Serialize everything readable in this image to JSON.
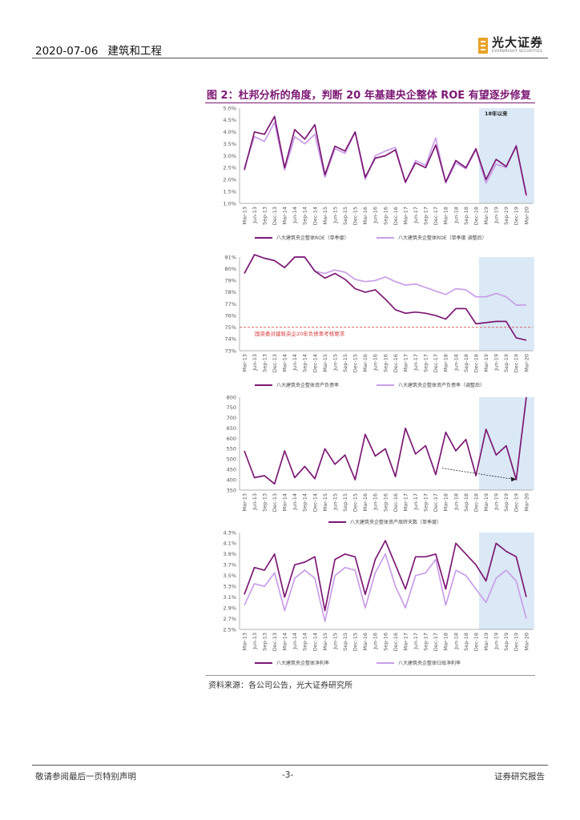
{
  "header": {
    "date": "2020-07-06",
    "section": "建筑和工程"
  },
  "logo": {
    "name": "光大证券",
    "sub": "EVERBRIGHT SECURITIES"
  },
  "figure": {
    "title": "图 2：杜邦分析的角度，判断 20 年基建央企整体 ROE 有望逐步修复"
  },
  "source": "资料来源：各公司公告，光大证券研究所",
  "footer": {
    "left": "敬请参阅最后一页特别声明",
    "center": "-3-",
    "right": "证券研究报告"
  },
  "colors": {
    "dark": "#7c1874",
    "light": "#c99ee8",
    "highlight": "#dbe9f6",
    "refline": "#d63a3a"
  },
  "chart_data": [
    {
      "type": "line",
      "x": [
        "Mar-13",
        "Jun-13",
        "Sep-13",
        "Dec-13",
        "Mar-14",
        "Jun-14",
        "Sep-14",
        "Dec-14",
        "Mar-15",
        "Jun-15",
        "Sep-15",
        "Dec-15",
        "Mar-16",
        "Jun-16",
        "Sep-16",
        "Dec-16",
        "Mar-17",
        "Jun-17",
        "Sep-17",
        "Dec-17",
        "Mar-18",
        "Jun-18",
        "Sep-18",
        "Dec-18",
        "Mar-19",
        "Jun-19",
        "Sep-19",
        "Dec-19",
        "Mar-20"
      ],
      "series": [
        {
          "name": "八大建筑央企整体ROE（单季度）",
          "values": [
            2.4,
            4.0,
            3.9,
            4.65,
            2.5,
            4.1,
            3.7,
            4.3,
            2.2,
            3.4,
            3.2,
            4.0,
            2.1,
            2.9,
            3.0,
            3.25,
            1.9,
            2.7,
            2.5,
            3.45,
            1.9,
            2.8,
            2.5,
            3.3,
            2.0,
            2.85,
            2.55,
            3.4,
            1.35
          ]
        },
        {
          "name": "八大建筑央企整体ROE（单季度 调整后）",
          "values": [
            2.5,
            3.8,
            3.6,
            4.4,
            2.4,
            3.8,
            3.5,
            3.9,
            2.1,
            3.3,
            3.1,
            4.0,
            2.0,
            3.0,
            3.2,
            3.35,
            1.85,
            2.8,
            2.6,
            3.75,
            1.85,
            2.7,
            2.45,
            3.25,
            1.85,
            2.65,
            2.5,
            3.45,
            1.3
          ]
        }
      ],
      "yticks": [
        "1.0%",
        "1.5%",
        "2.0%",
        "2.5%",
        "3.0%",
        "3.5%",
        "4.0%",
        "4.5%",
        "5.0%"
      ],
      "ylim": [
        1.0,
        5.0
      ],
      "annotation": "18年以来"
    },
    {
      "type": "line",
      "x": [
        "Mar-13",
        "Jun-13",
        "Sep-13",
        "Dec-13",
        "Mar-14",
        "Jun-14",
        "Sep-14",
        "Dec-14",
        "Mar-15",
        "Jun-15",
        "Sep-15",
        "Dec-15",
        "Mar-16",
        "Jun-16",
        "Sep-16",
        "Dec-16",
        "Mar-17",
        "Jun-17",
        "Sep-17",
        "Dec-17",
        "Mar-18",
        "Jun-18",
        "Sep-18",
        "Dec-18",
        "Mar-19",
        "Jun-19",
        "Sep-19",
        "Dec-19",
        "Mar-20"
      ],
      "series": [
        {
          "name": "八大建筑央企整体资产负债率",
          "values": [
            79.6,
            81.2,
            80.9,
            80.7,
            80.1,
            81.0,
            81.0,
            79.8,
            79.2,
            79.6,
            79.1,
            78.3,
            78.0,
            78.2,
            77.4,
            76.5,
            76.2,
            76.3,
            76.2,
            76.0,
            75.7,
            76.6,
            76.6,
            75.3,
            75.4,
            75.5,
            75.5,
            74.1,
            73.9
          ]
        },
        {
          "name": "八大建筑央企整体资产负债率（调整后）",
          "values": [
            79.6,
            81.2,
            80.9,
            80.7,
            80.1,
            81.0,
            81.0,
            79.8,
            79.6,
            79.9,
            79.7,
            79.1,
            78.9,
            79.0,
            79.3,
            78.9,
            78.6,
            78.7,
            78.4,
            78.1,
            77.8,
            78.3,
            78.2,
            77.6,
            77.6,
            77.9,
            77.6,
            76.9,
            76.9
          ]
        }
      ],
      "yticks": [
        "73%",
        "74%",
        "75%",
        "76%",
        "77%",
        "78%",
        "79%",
        "80%",
        "81%"
      ],
      "ylim": [
        73,
        81
      ],
      "reference": {
        "y": 75,
        "label": "国资委对建筑央企20年负债率考核要求"
      }
    },
    {
      "type": "line",
      "x": [
        "Mar-13",
        "Jun-13",
        "Sep-13",
        "Dec-13",
        "Mar-14",
        "Jun-14",
        "Sep-14",
        "Dec-14",
        "Mar-15",
        "Jun-15",
        "Sep-15",
        "Dec-15",
        "Mar-16",
        "Jun-16",
        "Sep-16",
        "Dec-16",
        "Mar-17",
        "Jun-17",
        "Sep-17",
        "Dec-17",
        "Mar-18",
        "Jun-18",
        "Sep-18",
        "Dec-18",
        "Mar-19",
        "Jun-19",
        "Sep-19",
        "Dec-19",
        "Mar-20"
      ],
      "series": [
        {
          "name": "八大建筑央企整体资产周转天数（单季度）",
          "values": [
            540,
            410,
            420,
            380,
            540,
            410,
            465,
            405,
            550,
            475,
            520,
            400,
            620,
            515,
            550,
            415,
            650,
            525,
            565,
            425,
            630,
            540,
            595,
            420,
            645,
            520,
            565,
            400,
            800
          ]
        }
      ],
      "yticks": [
        "350",
        "400",
        "450",
        "500",
        "550",
        "600",
        "650",
        "700",
        "750",
        "800"
      ],
      "ylim": [
        350,
        800
      ]
    },
    {
      "type": "line",
      "x": [
        "Mar-13",
        "Jun-13",
        "Sep-13",
        "Dec-13",
        "Mar-14",
        "Jun-14",
        "Sep-14",
        "Dec-14",
        "Mar-15",
        "Jun-15",
        "Sep-15",
        "Dec-15",
        "Mar-16",
        "Jun-16",
        "Sep-16",
        "Dec-16",
        "Mar-17",
        "Jun-17",
        "Sep-17",
        "Dec-17",
        "Mar-18",
        "Jun-18",
        "Sep-18",
        "Dec-18",
        "Mar-19",
        "Jun-19",
        "Sep-19",
        "Dec-19",
        "Mar-20"
      ],
      "series": [
        {
          "name": "八大建筑央企整体净利率",
          "values": [
            3.15,
            3.65,
            3.6,
            3.9,
            3.1,
            3.7,
            3.75,
            3.85,
            2.85,
            3.8,
            3.9,
            3.85,
            3.15,
            3.8,
            4.15,
            3.7,
            3.25,
            3.85,
            3.85,
            3.9,
            3.25,
            4.1,
            3.9,
            3.7,
            3.4,
            4.1,
            3.95,
            3.85,
            3.1
          ]
        },
        {
          "name": "八大建筑央企整体归母净利率",
          "values": [
            2.95,
            3.35,
            3.3,
            3.55,
            2.85,
            3.45,
            3.6,
            3.45,
            2.65,
            3.5,
            3.65,
            3.6,
            2.9,
            3.55,
            3.9,
            3.3,
            2.9,
            3.5,
            3.55,
            3.8,
            2.95,
            3.6,
            3.5,
            3.25,
            3.0,
            3.45,
            3.6,
            3.4,
            2.7
          ]
        }
      ],
      "yticks": [
        "2.5%",
        "2.7%",
        "2.9%",
        "3.1%",
        "3.3%",
        "3.5%",
        "3.7%",
        "3.9%",
        "4.1%",
        "4.3%"
      ],
      "ylim": [
        2.5,
        4.3
      ]
    }
  ]
}
